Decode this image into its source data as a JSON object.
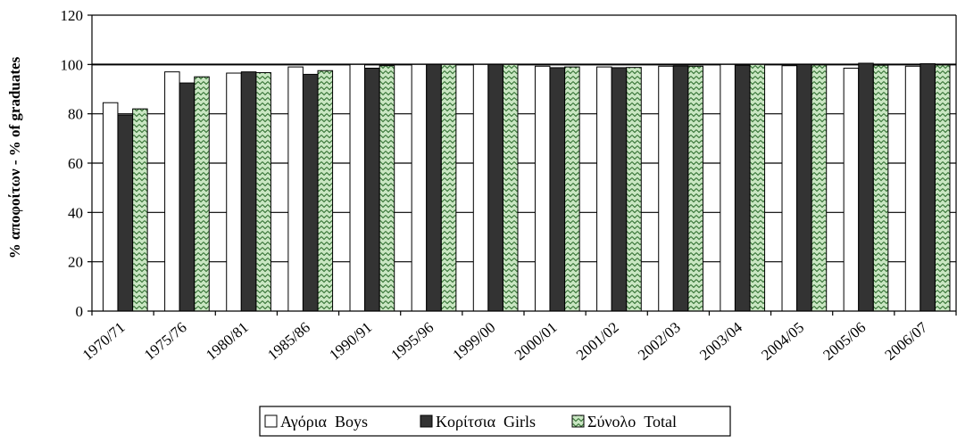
{
  "chart_data": {
    "type": "bar",
    "title": "",
    "xlabel": "",
    "ylabel": "% αποφοίτων - % of graduates",
    "ylim": [
      0,
      120
    ],
    "yticks": [
      0,
      20,
      40,
      60,
      80,
      100,
      120
    ],
    "grid": true,
    "legend_position": "bottom",
    "categories": [
      "1970/71",
      "1975/76",
      "1980/81",
      "1985/86",
      "1990/91",
      "1995/96",
      "1999/00",
      "2000/01",
      "2001/02",
      "2002/03",
      "2003/04",
      "2004/05",
      "2005/06",
      "2006/07"
    ],
    "series": [
      {
        "name": "Αγόρια  Boys",
        "fill": "#ffffff",
        "values": [
          84.5,
          97,
          96.5,
          99,
          100,
          100,
          100,
          99.3,
          99,
          99.3,
          100,
          99.5,
          98.5,
          99.3
        ]
      },
      {
        "name": "Κορίτσια  Girls",
        "fill": "#333333",
        "values": [
          79.5,
          92.5,
          97,
          96,
          98.5,
          100,
          100,
          98.7,
          98.7,
          99.4,
          99.7,
          100,
          100.5,
          100.3
        ]
      },
      {
        "name": "Σύνολο  Total",
        "fill": "#c9e6c2",
        "pattern": "zigzag",
        "values": [
          82,
          95,
          96.7,
          97.5,
          99.5,
          100,
          100,
          99,
          98.8,
          99.3,
          100,
          99.8,
          99.7,
          99.8
        ]
      }
    ]
  }
}
